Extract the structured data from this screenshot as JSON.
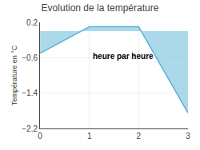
{
  "chart_data": {
    "type": "area",
    "title": "Evolution de la température",
    "ylabel": "Température en °C",
    "annotation": "heure par heure",
    "x": [
      0,
      1,
      2,
      3
    ],
    "values": [
      -0.5,
      0.1,
      0.1,
      -1.85
    ],
    "color": "#5ab4d6",
    "xlim": [
      0,
      3
    ],
    "xticks": [
      0,
      1,
      2,
      3
    ],
    "ylim": [
      -2.2,
      0.2
    ],
    "yticks": [
      0.2,
      -0.6,
      -1.4,
      -2.2
    ],
    "grid": true
  }
}
